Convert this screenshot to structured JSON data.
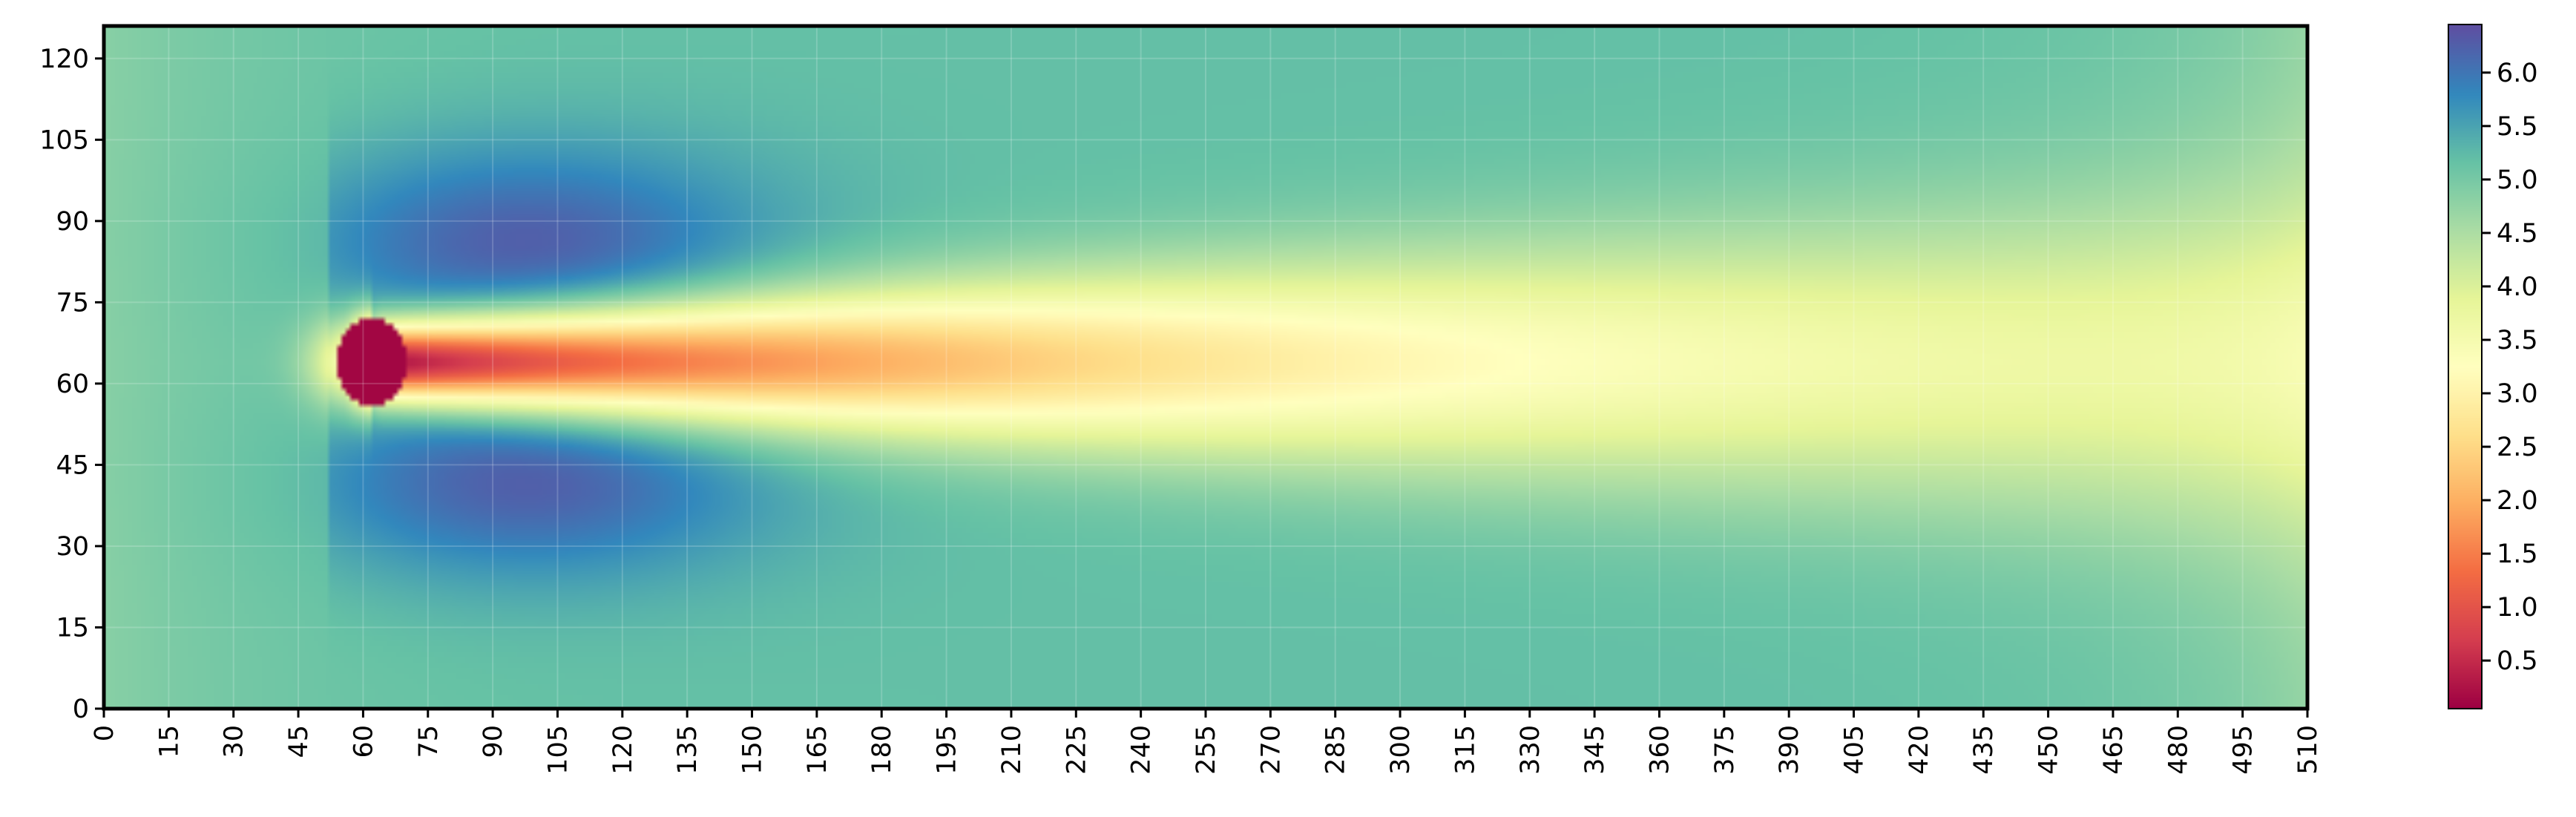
{
  "chart_data": {
    "type": "heatmap",
    "title": "",
    "xlabel": "",
    "ylabel": "",
    "colormap": "Spectral",
    "xlim": [
      0,
      510
    ],
    "ylim": [
      0,
      126
    ],
    "x_ticks": [
      "0",
      "15",
      "30",
      "45",
      "60",
      "75",
      "90",
      "105",
      "120",
      "135",
      "150",
      "165",
      "180",
      "195",
      "210",
      "225",
      "240",
      "255",
      "270",
      "285",
      "300",
      "315",
      "330",
      "345",
      "360",
      "375",
      "390",
      "405",
      "420",
      "435",
      "450",
      "465",
      "480",
      "495",
      "510"
    ],
    "y_ticks": [
      "0",
      "15",
      "30",
      "45",
      "60",
      "75",
      "90",
      "105",
      "120"
    ],
    "colorbar": {
      "range": [
        0.05,
        6.45
      ],
      "ticks": [
        "0.5",
        "1.0",
        "1.5",
        "2.0",
        "2.5",
        "3.0",
        "3.5",
        "4.0",
        "4.5",
        "5.0",
        "5.5",
        "6.0"
      ]
    },
    "field": {
      "description_free_value": 5.2,
      "obstacle_center": [
        62,
        64
      ],
      "obstacle_radius": 8,
      "wake_min_value": 0.1,
      "freestream_value": 5.2,
      "side_max_value": 6.1
    },
    "grid": true,
    "colors": {
      "min": "#9e0142",
      "max": "#5e4fa2",
      "mid": "#ffffbf"
    }
  }
}
